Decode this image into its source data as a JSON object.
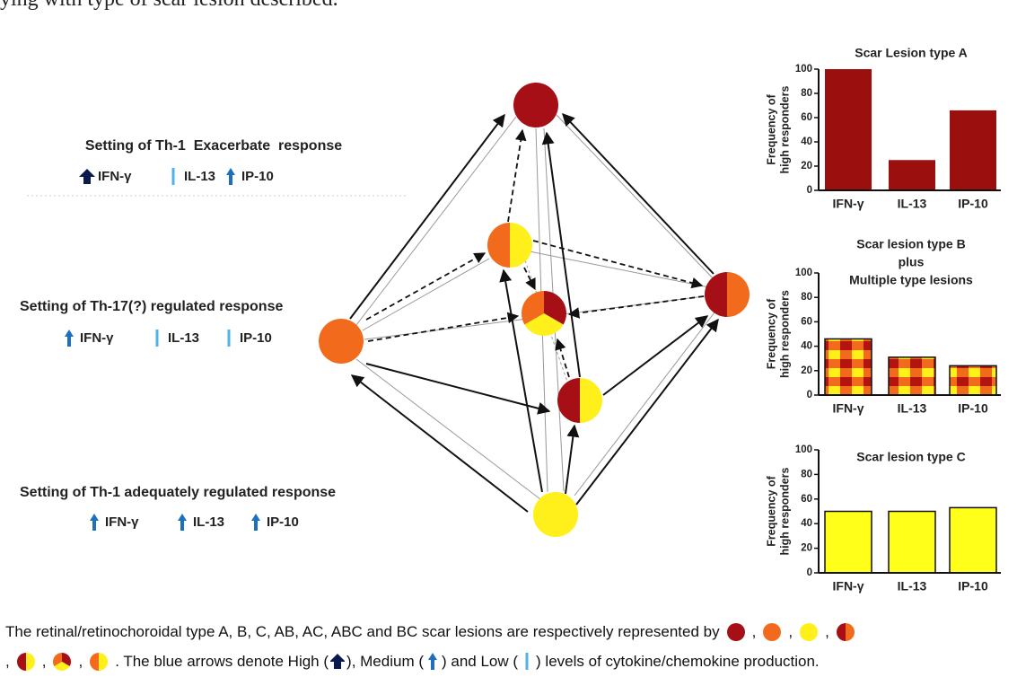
{
  "header_fragment": "ying with type of scar lesion described.",
  "settings": [
    {
      "title": "Setting of Th-1  Exacerbate  response",
      "markers": [
        "IFN-γ",
        "IL-13",
        "IP-10"
      ],
      "levels": [
        "high",
        "low",
        "medium"
      ]
    },
    {
      "title": "Setting of Th-17(?) regulated response",
      "markers": [
        "IFN-γ",
        "IL-13",
        "IP-10"
      ],
      "levels": [
        "medium",
        "low",
        "low"
      ]
    },
    {
      "title": "Setting of Th-1 adequately regulated response",
      "markers": [
        "IFN-γ",
        "IL-13",
        "IP-10"
      ],
      "levels": [
        "medium",
        "medium",
        "medium"
      ]
    }
  ],
  "chart_data": [
    {
      "type": "bar",
      "title": [
        "Scar Lesion type A"
      ],
      "y_label": [
        "Frequency of",
        "high responders"
      ],
      "categories": [
        "IFN-γ",
        "IL-13",
        "IP-10"
      ],
      "values": [
        100,
        25,
        66
      ],
      "color": "#9b0f0f",
      "ylim": [
        0,
        100
      ],
      "yticks": [
        0,
        20,
        40,
        60,
        80,
        100
      ]
    },
    {
      "type": "bar",
      "title": [
        "Scar lesion type B",
        "plus",
        "Multiple type lesions"
      ],
      "y_label": [
        "Frequency of",
        "high responders"
      ],
      "categories": [
        "IFN-γ",
        "IL-13",
        "IP-10"
      ],
      "values": [
        46,
        31,
        24
      ],
      "colors": [
        "#b3140f",
        "#f26a1b",
        "#ffef1a"
      ],
      "ylim": [
        0,
        100
      ],
      "yticks": [
        0,
        20,
        40,
        60,
        80,
        100
      ]
    },
    {
      "type": "bar",
      "title": [
        "Scar lesion type C"
      ],
      "y_label": [
        "Frequency of",
        "high responders"
      ],
      "categories": [
        "IFN-γ",
        "IL-13",
        "IP-10"
      ],
      "values": [
        50,
        50,
        53
      ],
      "color": "#ffff1a",
      "ylim": [
        0,
        100
      ],
      "yticks": [
        0,
        20,
        40,
        60,
        80,
        100
      ]
    }
  ],
  "caption": {
    "parts": [
      "The retinal/retinochoroidal type A, B, C, AB, AC, ABC and  BC scar lesions are respectively represented by",
      ",",
      ",",
      ",",
      ",",
      ",",
      ",",
      ". The blue arrows denote High (",
      "), Medium (",
      ") and Low (",
      ") levels of cytokine/chemokine production."
    ]
  }
}
